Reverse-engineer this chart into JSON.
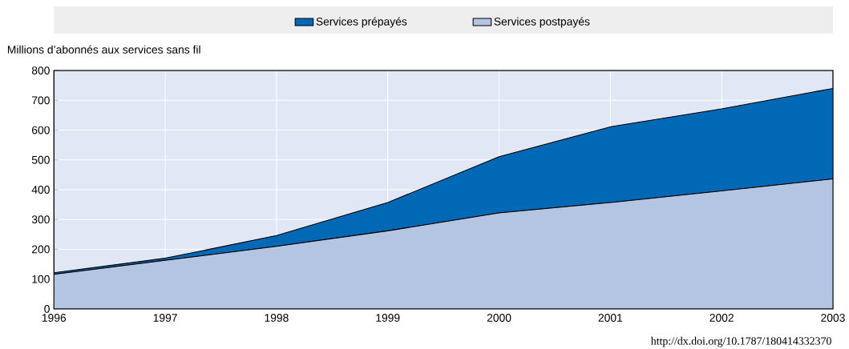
{
  "chart_data": {
    "type": "area",
    "stacked": true,
    "ylabel": "Millions d’abonnés aux services sans fil",
    "x": [
      1996,
      1997,
      1998,
      1999,
      2000,
      2001,
      2002,
      2003
    ],
    "series": [
      {
        "name": "Services postpayés",
        "color": "#b4c5e4",
        "values": [
          116,
          163,
          210,
          262,
          322,
          357,
          396,
          436
        ]
      },
      {
        "name": "Services prépayés",
        "color": "#0068b5",
        "values": [
          5,
          7,
          36,
          95,
          189,
          254,
          275,
          304
        ]
      }
    ],
    "xlim": [
      1996,
      2003
    ],
    "xticks": [
      1996,
      1997,
      1998,
      1999,
      2000,
      2001,
      2002,
      2003
    ],
    "ylim": [
      0,
      800
    ],
    "yticks": [
      0,
      100,
      200,
      300,
      400,
      500,
      600,
      700,
      800
    ],
    "grid": true,
    "legend": "top",
    "annotations": [
      "http://dx.doi.org/10.1787/180414332370"
    ]
  }
}
